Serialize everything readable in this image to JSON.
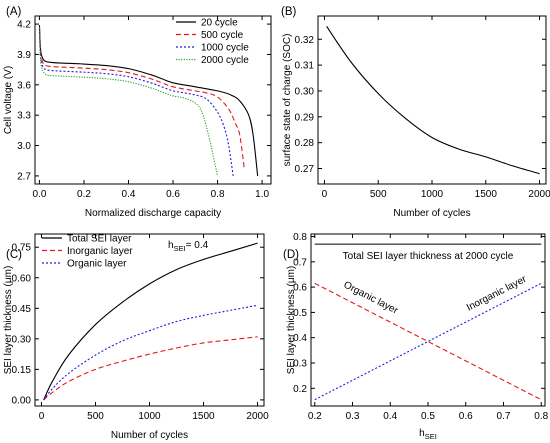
{
  "chart_data": [
    {
      "panel_label": "(A)",
      "type": "line",
      "xlabel": "Normalized discharge capacity",
      "ylabel": "Cell voltage (V)",
      "xlim": [
        -0.02,
        1.04
      ],
      "ylim": [
        2.62,
        4.28
      ],
      "xticks": [
        0.0,
        0.2,
        0.4,
        0.6,
        0.8,
        1.0
      ],
      "xtick_labels": [
        "0.0",
        "0.2",
        "0.4",
        "0.6",
        "0.8",
        "1.0"
      ],
      "yticks": [
        2.7,
        3.0,
        3.3,
        3.6,
        3.9,
        4.2
      ],
      "ytick_labels": [
        "2.7",
        "3.0",
        "3.3",
        "3.6",
        "3.9",
        "4.2"
      ],
      "legend_position": "top-right",
      "series": [
        {
          "name": "20 cycle",
          "color": "#000000",
          "dash": "solid",
          "x": [
            0.0,
            0.005,
            0.015,
            0.03,
            0.06,
            0.1,
            0.2,
            0.3,
            0.4,
            0.5,
            0.55,
            0.6,
            0.7,
            0.8,
            0.86,
            0.9,
            0.94,
            0.96,
            0.98
          ],
          "y": [
            4.19,
            3.95,
            3.86,
            3.83,
            3.82,
            3.815,
            3.805,
            3.79,
            3.76,
            3.7,
            3.66,
            3.62,
            3.58,
            3.54,
            3.5,
            3.44,
            3.3,
            3.1,
            2.7
          ]
        },
        {
          "name": "500 cycle",
          "color": "#e8161b",
          "dash": "dash",
          "x": [
            0.0,
            0.005,
            0.015,
            0.03,
            0.06,
            0.1,
            0.2,
            0.3,
            0.4,
            0.5,
            0.55,
            0.6,
            0.7,
            0.75,
            0.8,
            0.85,
            0.88,
            0.9,
            0.92
          ],
          "y": [
            4.17,
            3.92,
            3.82,
            3.79,
            3.78,
            3.775,
            3.765,
            3.75,
            3.72,
            3.66,
            3.62,
            3.58,
            3.54,
            3.52,
            3.48,
            3.36,
            3.22,
            3.1,
            2.77
          ]
        },
        {
          "name": "1000 cycle",
          "color": "#1d1de0",
          "dash": "dot",
          "x": [
            0.0,
            0.005,
            0.015,
            0.03,
            0.06,
            0.1,
            0.2,
            0.3,
            0.4,
            0.5,
            0.55,
            0.6,
            0.65,
            0.7,
            0.75,
            0.8,
            0.83,
            0.85,
            0.87
          ],
          "y": [
            4.15,
            3.88,
            3.78,
            3.75,
            3.74,
            3.735,
            3.725,
            3.71,
            3.68,
            3.62,
            3.58,
            3.54,
            3.52,
            3.5,
            3.46,
            3.33,
            3.18,
            3.0,
            2.7
          ]
        },
        {
          "name": "2000 cycle",
          "color": "#2ca02c",
          "dash": "dense-dot",
          "x": [
            0.0,
            0.005,
            0.015,
            0.03,
            0.06,
            0.1,
            0.2,
            0.3,
            0.4,
            0.5,
            0.55,
            0.6,
            0.65,
            0.7,
            0.73,
            0.76,
            0.78,
            0.8
          ],
          "y": [
            4.13,
            3.84,
            3.74,
            3.7,
            3.69,
            3.685,
            3.675,
            3.66,
            3.63,
            3.57,
            3.53,
            3.49,
            3.47,
            3.42,
            3.33,
            3.1,
            2.9,
            2.7
          ]
        }
      ]
    },
    {
      "panel_label": "(B)",
      "type": "line",
      "xlabel": "Number of cycles",
      "ylabel": "surface state of charge (SOC)",
      "xlim": [
        -60,
        2060
      ],
      "ylim": [
        0.264,
        0.329
      ],
      "xticks": [
        0,
        500,
        1000,
        1500,
        2000
      ],
      "xtick_labels": [
        "0",
        "500",
        "1000",
        "1500",
        "2000"
      ],
      "yticks": [
        0.27,
        0.28,
        0.29,
        0.3,
        0.31,
        0.32
      ],
      "ytick_labels": [
        "0.27",
        "0.28",
        "0.29",
        "0.30",
        "0.31",
        "0.32"
      ],
      "series": [
        {
          "color": "#000000",
          "dash": "solid",
          "x": [
            20,
            250,
            500,
            750,
            1000,
            1250,
            1500,
            1750,
            2000
          ],
          "y": [
            0.325,
            0.311,
            0.299,
            0.2895,
            0.282,
            0.2775,
            0.2745,
            0.271,
            0.268
          ]
        }
      ]
    },
    {
      "panel_label": "(C)",
      "type": "line",
      "xlabel": "Number of cycles",
      "ylabel": "SEI layer thickness (μm)",
      "xlim": [
        -60,
        2060
      ],
      "ylim": [
        -0.03,
        0.815
      ],
      "xticks": [
        0,
        500,
        1000,
        1500,
        2000
      ],
      "xtick_labels": [
        "0",
        "500",
        "1000",
        "1500",
        "2000"
      ],
      "yticks": [
        0.0,
        0.15,
        0.3,
        0.45,
        0.6,
        0.75
      ],
      "ytick_labels": [
        "0.00",
        "0.15",
        "0.30",
        "0.45",
        "0.60",
        "0.75"
      ],
      "legend_position": "top-left",
      "annotation": {
        "text": "h",
        "subscript": "SEI",
        "suffix": "= 0.4"
      },
      "series": [
        {
          "name": "Total SEI layer",
          "color": "#000000",
          "dash": "solid",
          "x": [
            20,
            100,
            250,
            500,
            750,
            1000,
            1250,
            1500,
            1750,
            2000
          ],
          "y": [
            0.0,
            0.09,
            0.22,
            0.37,
            0.48,
            0.57,
            0.64,
            0.69,
            0.73,
            0.77
          ]
        },
        {
          "name": "Inorganic layer",
          "color": "#e8161b",
          "dash": "dash",
          "x": [
            20,
            100,
            250,
            500,
            750,
            1000,
            1250,
            1500,
            1750,
            2000
          ],
          "y": [
            0.0,
            0.036,
            0.09,
            0.15,
            0.19,
            0.225,
            0.255,
            0.28,
            0.295,
            0.31
          ]
        },
        {
          "name": "Organic layer",
          "color": "#1d1de0",
          "dash": "dot",
          "x": [
            20,
            100,
            250,
            500,
            750,
            1000,
            1250,
            1500,
            1750,
            2000
          ],
          "y": [
            0.0,
            0.054,
            0.13,
            0.22,
            0.29,
            0.34,
            0.385,
            0.415,
            0.44,
            0.465
          ]
        }
      ]
    },
    {
      "panel_label": "(D)",
      "type": "line",
      "xlabel": "h",
      "xlabel_subscript": "SEI",
      "ylabel": "SEI layer thickness (μm)",
      "xlim": [
        0.19,
        0.81
      ],
      "ylim": [
        0.13,
        0.81
      ],
      "xticks": [
        0.2,
        0.3,
        0.4,
        0.5,
        0.6,
        0.7,
        0.8
      ],
      "xtick_labels": [
        "0.2",
        "0.3",
        "0.4",
        "0.5",
        "0.6",
        "0.7",
        "0.8"
      ],
      "yticks": [
        0.2,
        0.3,
        0.4,
        0.5,
        0.6,
        0.7,
        0.8
      ],
      "ytick_labels": [
        "0.2",
        "0.3",
        "0.4",
        "0.5",
        "0.6",
        "0.7",
        "0.8"
      ],
      "annotations": [
        "Total SEI layer thickness at 2000 cycle",
        "Organic layer",
        "Inorganic layer"
      ],
      "series": [
        {
          "name": "Total SEI layer thickness at 2000 cycle",
          "color": "#000000",
          "dash": "solid",
          "x": [
            0.2,
            0.8
          ],
          "y": [
            0.77,
            0.77
          ]
        },
        {
          "name": "Organic layer",
          "color": "#e8161b",
          "dash": "dash",
          "x": [
            0.2,
            0.8
          ],
          "y": [
            0.615,
            0.155
          ]
        },
        {
          "name": "Inorganic layer",
          "color": "#1d1de0",
          "dash": "dot",
          "x": [
            0.2,
            0.8
          ],
          "y": [
            0.155,
            0.615
          ]
        }
      ]
    }
  ]
}
